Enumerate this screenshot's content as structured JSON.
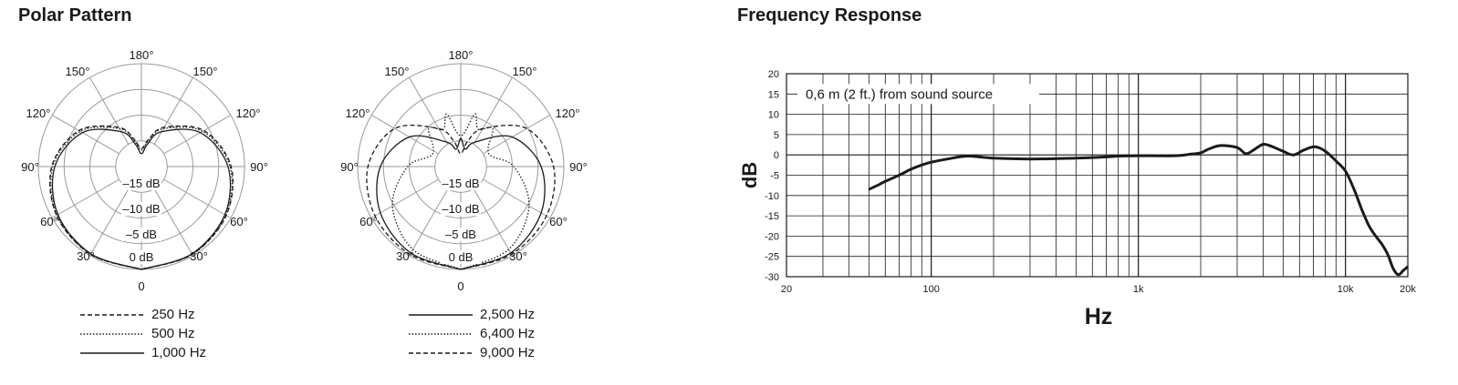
{
  "polar_title": "Polar Pattern",
  "frequency_title": "Frequency Response",
  "polar_labels": {
    "top": "180°",
    "upper": "150°",
    "mid_upper": "120°",
    "side": "90°",
    "mid_lower": "60°",
    "lower": "30°",
    "bottom": "0",
    "rings": [
      "0 dB",
      "–5 dB",
      "–10 dB",
      "–15 dB"
    ]
  },
  "colors": {
    "ink": "#1a1a1a",
    "grid": "#9a9a9a",
    "background": "#ffffff"
  },
  "chart_data": [
    {
      "type": "polar",
      "rlim_db": [
        -20,
        0
      ],
      "ring_db": [
        0,
        -5,
        -10,
        -15,
        -20
      ],
      "spoke_step_deg": 30,
      "series": [
        {
          "name": "250 Hz",
          "style": "dashed",
          "angles": [
            0,
            30,
            60,
            90,
            120,
            150,
            165,
            180
          ],
          "db": [
            0,
            -0.3,
            -1.0,
            -2.6,
            -6.0,
            -11.2,
            -14.5,
            -16.5
          ]
        },
        {
          "name": "500 Hz",
          "style": "dotted",
          "angles": [
            0,
            30,
            60,
            90,
            120,
            150,
            165,
            180
          ],
          "db": [
            0,
            -0.3,
            -1.1,
            -2.8,
            -6.3,
            -11.5,
            -14.8,
            -16.8
          ]
        },
        {
          "name": "1,000 Hz",
          "style": "solid",
          "angles": [
            0,
            30,
            60,
            90,
            120,
            150,
            165,
            180
          ],
          "db": [
            0,
            -0.4,
            -1.3,
            -3.2,
            -6.8,
            -12.2,
            -15.5,
            -17.5
          ]
        }
      ]
    },
    {
      "type": "polar",
      "rlim_db": [
        -20,
        0
      ],
      "ring_db": [
        0,
        -5,
        -10,
        -15,
        -20
      ],
      "spoke_step_deg": 30,
      "series": [
        {
          "name": "2,500 Hz",
          "style": "solid",
          "angles": [
            0,
            30,
            60,
            90,
            120,
            150,
            165,
            180
          ],
          "db": [
            0,
            -0.6,
            -2.0,
            -4.4,
            -8.5,
            -14.5,
            -16.5,
            -14.5
          ]
        },
        {
          "name": "6,400 Hz",
          "style": "dotted",
          "angles": [
            0,
            30,
            60,
            90,
            115,
            140,
            155,
            165,
            180
          ],
          "db": [
            0,
            -1.4,
            -4.7,
            -9.7,
            -14.0,
            -10.3,
            -12.0,
            -9.4,
            -14.0
          ]
        },
        {
          "name": "9,000 Hz",
          "style": "dashed",
          "angles": [
            0,
            30,
            60,
            90,
            120,
            150,
            165,
            180
          ],
          "db": [
            0,
            -0.3,
            -0.8,
            -2.0,
            -5.2,
            -11.5,
            -15.0,
            -17.5
          ]
        }
      ]
    },
    {
      "type": "line",
      "xscale": "log",
      "xlim": [
        20,
        20000
      ],
      "ylim": [
        -30,
        20
      ],
      "yticks": [
        20,
        15,
        10,
        5,
        0,
        -5,
        -10,
        -15,
        -20,
        -25,
        -30
      ],
      "xtick_labels": [
        {
          "v": 20,
          "label": "20"
        },
        {
          "v": 100,
          "label": "100"
        },
        {
          "v": 1000,
          "label": "1k"
        },
        {
          "v": 10000,
          "label": "10k"
        },
        {
          "v": 20000,
          "label": "20k"
        }
      ],
      "xlabel": "Hz",
      "ylabel": "dB",
      "annotation": "0,6 m (2 ft.) from sound source",
      "grid": true,
      "x": [
        50,
        55,
        60,
        70,
        80,
        90,
        100,
        120,
        150,
        200,
        300,
        500,
        700,
        800,
        1000,
        1500,
        1800,
        2000,
        2200,
        2500,
        3000,
        3300,
        3600,
        4000,
        4400,
        5000,
        5600,
        6300,
        7100,
        8000,
        9000,
        10000,
        11000,
        12000,
        13000,
        14000,
        15000,
        16000,
        17000,
        18000,
        19000,
        20000
      ],
      "y": [
        -8.5,
        -7.5,
        -6.5,
        -5.0,
        -3.5,
        -2.5,
        -1.8,
        -1.0,
        -0.3,
        -0.8,
        -1.0,
        -0.8,
        -0.5,
        -0.3,
        -0.2,
        -0.2,
        0.2,
        0.5,
        1.5,
        2.3,
        1.8,
        0.3,
        1.2,
        2.6,
        2.1,
        0.9,
        0.0,
        1.2,
        2.0,
        0.9,
        -1.5,
        -4.0,
        -8.5,
        -13.5,
        -17.5,
        -20.0,
        -22.0,
        -24.5,
        -28.0,
        -29.5,
        -28.5,
        -27.5
      ]
    }
  ]
}
